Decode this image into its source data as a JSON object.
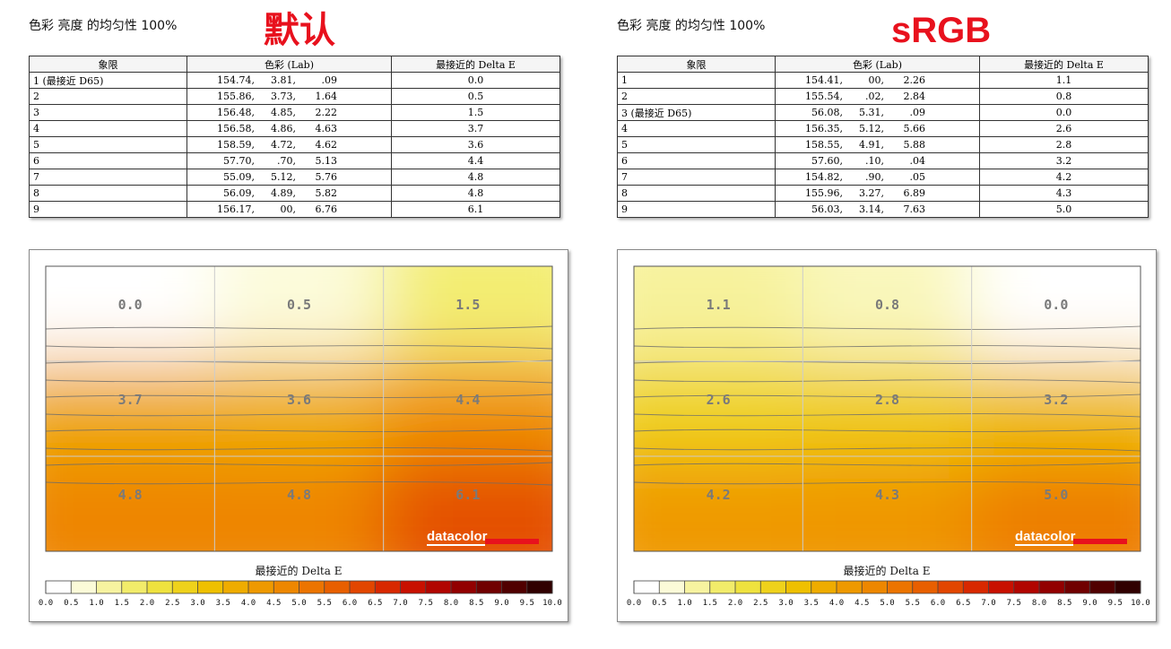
{
  "colorbar_ticks": [
    "0.0",
    "0.5",
    "1.0",
    "1.5",
    "2.0",
    "2.5",
    "3.0",
    "3.5",
    "4.0",
    "4.5",
    "5.0",
    "5.5",
    "6.0",
    "6.5",
    "7.0",
    "7.5",
    "8.0",
    "8.5",
    "9.0",
    "9.5",
    "10.0"
  ],
  "colorbar_colors": [
    "#ffffff",
    "#fcfbd8",
    "#f7f3a0",
    "#f2ec6a",
    "#efe23e",
    "#efd21b",
    "#efc000",
    "#efac00",
    "#ef9900",
    "#ee8700",
    "#ec7400",
    "#e85f00",
    "#e24600",
    "#d82800",
    "#c81000",
    "#b10500",
    "#920000",
    "#700000",
    "#500000",
    "#300000"
  ],
  "panels": [
    {
      "heading": "色彩 亮度 的均匀性 100%",
      "mode_label": "默认",
      "table": {
        "headers": [
          "象限",
          "色彩 (Lab)",
          "最接近的 Delta E"
        ],
        "rows": [
          {
            "q": "1 (最接近 D65)",
            "l": "154.74,",
            "a": "3.81,",
            "b": ".09",
            "de": "0.0"
          },
          {
            "q": "2",
            "l": "155.86,",
            "a": "3.73,",
            "b": "1.64",
            "de": "0.5"
          },
          {
            "q": "3",
            "l": "156.48,",
            "a": "4.85,",
            "b": "2.22",
            "de": "1.5"
          },
          {
            "q": "4",
            "l": "156.58,",
            "a": "4.86,",
            "b": "4.63",
            "de": "3.7"
          },
          {
            "q": "5",
            "l": "158.59,",
            "a": "4.72,",
            "b": "4.62",
            "de": "3.6"
          },
          {
            "q": "6",
            "l": "57.70,",
            "a": ".70,",
            "b": "5.13",
            "de": "4.4"
          },
          {
            "q": "7",
            "l": "55.09,",
            "a": "5.12,",
            "b": "5.76",
            "de": "4.8"
          },
          {
            "q": "8",
            "l": "56.09,",
            "a": "4.89,",
            "b": "5.82",
            "de": "4.8"
          },
          {
            "q": "9",
            "l": "156.17,",
            "a": "00,",
            "b": "6.76",
            "de": "6.1"
          }
        ]
      },
      "chart_caption": "最接近的 Delta E",
      "brand": "datacolor",
      "chart_data": {
        "type": "heatmap",
        "grid": [
          [
            "0.0",
            "0.5",
            "1.5"
          ],
          [
            "3.7",
            "3.6",
            "4.4"
          ],
          [
            "4.8",
            "4.8",
            "6.1"
          ]
        ],
        "values": [
          [
            0.0,
            0.5,
            1.5
          ],
          [
            3.7,
            3.6,
            4.4
          ],
          [
            4.8,
            4.8,
            6.1
          ]
        ],
        "colorbar_range": [
          0,
          10
        ],
        "colorbar_label": "最接近的 Delta E"
      }
    },
    {
      "heading": "色彩 亮度 的均匀性 100%",
      "mode_label": "sRGB",
      "table": {
        "headers": [
          "象限",
          "色彩 (Lab)",
          "最接近的 Delta E"
        ],
        "rows": [
          {
            "q": "1",
            "l": "154.41,",
            "a": "00,",
            "b": "2.26",
            "de": "1.1"
          },
          {
            "q": "2",
            "l": "155.54,",
            "a": ".02,",
            "b": "2.84",
            "de": "0.8"
          },
          {
            "q": "3 (最接近 D65)",
            "l": "56.08,",
            "a": "5.31,",
            "b": ".09",
            "de": "0.0"
          },
          {
            "q": "4",
            "l": "156.35,",
            "a": "5.12,",
            "b": "5.66",
            "de": "2.6"
          },
          {
            "q": "5",
            "l": "158.55,",
            "a": "4.91,",
            "b": "5.88",
            "de": "2.8"
          },
          {
            "q": "6",
            "l": "57.60,",
            "a": ".10,",
            "b": ".04",
            "de": "3.2"
          },
          {
            "q": "7",
            "l": "154.82,",
            "a": ".90,",
            "b": ".05",
            "de": "4.2"
          },
          {
            "q": "8",
            "l": "155.96,",
            "a": "3.27,",
            "b": "6.89",
            "de": "4.3"
          },
          {
            "q": "9",
            "l": "56.03,",
            "a": "3.14,",
            "b": "7.63",
            "de": "5.0"
          }
        ]
      },
      "chart_caption": "最接近的 Delta E",
      "brand": "datacolor",
      "chart_data": {
        "type": "heatmap",
        "grid": [
          [
            "1.1",
            "0.8",
            "0.0"
          ],
          [
            "2.6",
            "2.8",
            "3.2"
          ],
          [
            "4.2",
            "4.3",
            "5.0"
          ]
        ],
        "values": [
          [
            1.1,
            0.8,
            0.0
          ],
          [
            2.6,
            2.8,
            3.2
          ],
          [
            4.2,
            4.3,
            5.0
          ]
        ],
        "colorbar_range": [
          0,
          10
        ],
        "colorbar_label": "最接近的 Delta E"
      }
    }
  ]
}
